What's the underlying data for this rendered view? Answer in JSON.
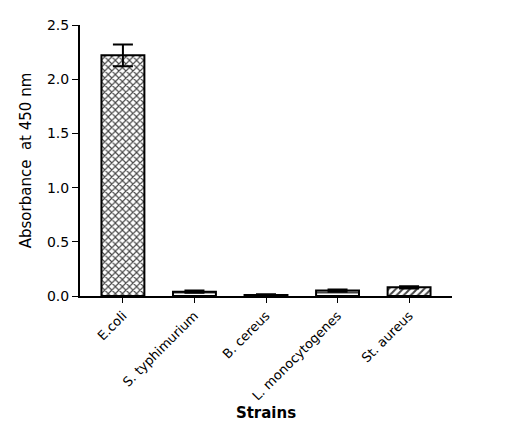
{
  "chart_data": {
    "type": "bar",
    "x_label": "Strains",
    "y_label": "Absorbance  at 450 nm",
    "categories": [
      "E.coli",
      "S. typhimurium",
      "B. cereus",
      "L. monocytogenes",
      "St. aureus"
    ],
    "values": [
      2.22,
      0.04,
      0.01,
      0.05,
      0.08
    ],
    "errors": [
      0.1,
      0.01,
      0.005,
      0.01,
      0.01
    ],
    "color": "#444444",
    "ylim": [
      0,
      2.5
    ],
    "yticks": [
      {
        "value": 0,
        "label": "0.0"
      },
      0.5,
      {
        "value": 1,
        "label": "1.0"
      },
      1.5,
      {
        "value": 2,
        "label": "2.0"
      },
      2.5
    ],
    "grid": false
  }
}
